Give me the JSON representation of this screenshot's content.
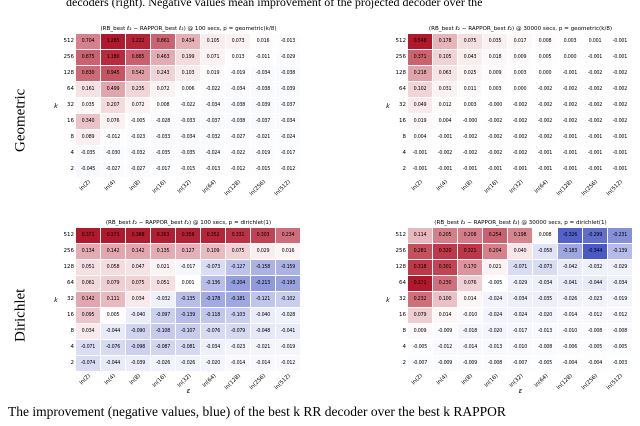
{
  "page": {
    "top_text": "decoders (right). Negative values mean improvement of the projected decoder over the",
    "caption": "The improvement (negative values, blue) of the best k RR decoder over the best k RAPPOR"
  },
  "row_labels": [
    "Geometric",
    "Dirichlet"
  ],
  "colors": {
    "positive_max": "#b2182b",
    "negative_max": "#3b4cc0",
    "mid": "#ffffff"
  },
  "chart_data": [
    {
      "type": "heatmap",
      "title": "(RB_best ℓ₂ − RAPPOR_best ℓ₂) @ 100 secs, p = geometric(k/8)",
      "group": "Geometric",
      "ylabel": "k",
      "xlabel": "",
      "x_axis_name": "ε",
      "rows": [
        "512",
        "256",
        "128",
        "64",
        "32",
        "16",
        "8",
        "4",
        "2"
      ],
      "cols": [
        "ln(2)",
        "ln(4)",
        "ln(8)",
        "ln(16)",
        "ln(32)",
        "ln(64)",
        "ln(128)",
        "ln(256)",
        "ln(512)"
      ],
      "values": [
        [
          "0.704",
          "1.285",
          "1.222",
          "0.861",
          "0.434",
          "0.105",
          "0.073",
          "0.016",
          "-0.013"
        ],
        [
          "0.875",
          "1.180",
          "0.885",
          "0.463",
          "0.199",
          "0.071",
          "0.013",
          "-0.011",
          "-0.029"
        ],
        [
          "0.830",
          "0.945",
          "0.542",
          "0.243",
          "0.103",
          "0.019",
          "-0.019",
          "-0.034",
          "-0.038"
        ],
        [
          "0.161",
          "0.499",
          "0.235",
          "0.072",
          "0.006",
          "-0.022",
          "-0.034",
          "-0.038",
          "-0.039"
        ],
        [
          "0.035",
          "0.207",
          "0.072",
          "0.008",
          "-0.022",
          "-0.034",
          "-0.038",
          "-0.039",
          "-0.037"
        ],
        [
          "0.340",
          "0.076",
          "-0.005",
          "-0.028",
          "-0.033",
          "-0.037",
          "-0.038",
          "-0.037",
          "-0.034"
        ],
        [
          "0.089",
          "-0.012",
          "-0.023",
          "-0.033",
          "-0.034",
          "-0.032",
          "-0.027",
          "-0.021",
          "-0.024"
        ],
        [
          "-0.035",
          "-0.030",
          "-0.032",
          "-0.035",
          "-0.035",
          "-0.024",
          "-0.022",
          "-0.019",
          "-0.017"
        ],
        [
          "-0.045",
          "-0.027",
          "-0.027",
          "-0.017",
          "-0.015",
          "-0.013",
          "-0.012",
          "-0.015",
          "-0.012"
        ]
      ]
    },
    {
      "type": "heatmap",
      "title": "(RB_best ℓ₂ − RAPPOR_best ℓ₂) @ 30000 secs, p = geometric(k/8)",
      "group": "Geometric",
      "ylabel": "k",
      "xlabel": "",
      "x_axis_name": "ε",
      "rows": [
        "512",
        "256",
        "128",
        "64",
        "32",
        "16",
        "8",
        "4",
        "2"
      ],
      "cols": [
        "ln(2)",
        "ln(4)",
        "ln(8)",
        "ln(16)",
        "ln(32)",
        "ln(64)",
        "ln(128)",
        "ln(256)",
        "ln(512)"
      ],
      "values": [
        [
          "0.548",
          "0.178",
          "0.075",
          "0.035",
          "0.017",
          "0.008",
          "0.003",
          "0.001",
          "-0.001"
        ],
        [
          "0.371",
          "0.105",
          "0.043",
          "0.018",
          "0.009",
          "0.005",
          "0.000",
          "-0.001",
          "-0.001"
        ],
        [
          "0.218",
          "0.063",
          "0.025",
          "0.009",
          "0.003",
          "0.000",
          "-0.001",
          "-0.002",
          "-0.002"
        ],
        [
          "0.102",
          "0.031",
          "0.011",
          "0.003",
          "0.000",
          "-0.002",
          "-0.002",
          "-0.002",
          "-0.002"
        ],
        [
          "0.049",
          "0.012",
          "0.003",
          "-0.000",
          "-0.002",
          "-0.002",
          "-0.002",
          "-0.002",
          "-0.002"
        ],
        [
          "0.019",
          "0.004",
          "-0.000",
          "-0.002",
          "-0.002",
          "-0.002",
          "-0.002",
          "-0.002",
          "-0.002"
        ],
        [
          "0.004",
          "-0.001",
          "-0.002",
          "-0.002",
          "-0.002",
          "-0.002",
          "-0.001",
          "-0.001",
          "-0.001"
        ],
        [
          "-0.001",
          "-0.002",
          "-0.002",
          "-0.002",
          "-0.002",
          "-0.001",
          "-0.001",
          "-0.001",
          "-0.001"
        ],
        [
          "-0.001",
          "-0.001",
          "-0.001",
          "-0.001",
          "-0.001",
          "-0.001",
          "-0.001",
          "-0.001",
          "-0.001"
        ]
      ]
    },
    {
      "type": "heatmap",
      "title": "(RB_best ℓ₂ − RAPPOR_best ℓ₂) @ 100 secs, p = dirichlet(1)",
      "group": "Dirichlet",
      "ylabel": "k",
      "xlabel": "ε",
      "x_axis_name": "ε",
      "rows": [
        "512",
        "256",
        "128",
        "64",
        "32",
        "16",
        "8",
        "4",
        "2"
      ],
      "cols": [
        "ln(2)",
        "ln(4)",
        "ln(8)",
        "ln(16)",
        "ln(32)",
        "ln(64)",
        "ln(128)",
        "ln(256)",
        "ln(512)"
      ],
      "values": [
        [
          "0.371",
          "0.373",
          "0.368",
          "0.363",
          "0.358",
          "0.352",
          "0.331",
          "0.303",
          "0.234"
        ],
        [
          "0.134",
          "0.142",
          "0.142",
          "0.135",
          "0.127",
          "0.109",
          "0.075",
          "0.029",
          "0.016"
        ],
        [
          "0.051",
          "0.058",
          "0.047",
          "0.021",
          "-0.017",
          "-0.073",
          "-0.127",
          "-0.158",
          "-0.159"
        ],
        [
          "0.061",
          "0.079",
          "0.075",
          "0.051",
          "0.001",
          "-0.136",
          "-0.204",
          "-0.213",
          "-0.193"
        ],
        [
          "0.142",
          "0.111",
          "0.034",
          "-0.032",
          "-0.135",
          "-0.178",
          "-0.181",
          "-0.121",
          "-0.102"
        ],
        [
          "0.095",
          "0.005",
          "-0.040",
          "-0.097",
          "-0.139",
          "-0.118",
          "-0.103",
          "-0.040",
          "-0.028"
        ],
        [
          "0.034",
          "-0.044",
          "-0.090",
          "-0.108",
          "-0.107",
          "-0.076",
          "-0.079",
          "-0.048",
          "-0.041"
        ],
        [
          "-0.071",
          "-0.076",
          "-0.098",
          "-0.087",
          "-0.081",
          "-0.034",
          "-0.023",
          "-0.021",
          "-0.019"
        ],
        [
          "-0.074",
          "-0.044",
          "-0.039",
          "-0.026",
          "-0.026",
          "-0.020",
          "-0.014",
          "-0.014",
          "-0.012"
        ]
      ]
    },
    {
      "type": "heatmap",
      "title": "(RB_best ℓ₂ − RAPPOR_best ℓ₂) @ 30000 secs, p = dirichlet(1)",
      "group": "Dirichlet",
      "ylabel": "k",
      "xlabel": "ε",
      "x_axis_name": "ε",
      "rows": [
        "512",
        "256",
        "128",
        "64",
        "32",
        "16",
        "8",
        "4",
        "2"
      ],
      "cols": [
        "ln(2)",
        "ln(4)",
        "ln(8)",
        "ln(16)",
        "ln(32)",
        "ln(64)",
        "ln(128)",
        "ln(256)",
        "ln(512)"
      ],
      "values": [
        [
          "0.114",
          "0.205",
          "0.208",
          "0.254",
          "0.198",
          "0.008",
          "-0.326",
          "-0.299",
          "-0.231"
        ],
        [
          "0.281",
          "0.320",
          "0.321",
          "0.204",
          "0.040",
          "-0.058",
          "-0.183",
          "-0.344",
          "-0.139"
        ],
        [
          "0.318",
          "0.301",
          "0.170",
          "0.021",
          "-0.071",
          "-0.073",
          "-0.042",
          "-0.032",
          "-0.029"
        ],
        [
          "0.371",
          "0.230",
          "0.076",
          "-0.005",
          "-0.029",
          "-0.034",
          "-0.041",
          "-0.044",
          "-0.034"
        ],
        [
          "0.232",
          "0.100",
          "0.014",
          "-0.024",
          "-0.034",
          "-0.035",
          "-0.026",
          "-0.023",
          "-0.019"
        ],
        [
          "0.079",
          "0.014",
          "-0.010",
          "-0.024",
          "-0.024",
          "-0.020",
          "-0.014",
          "-0.012",
          "-0.012"
        ],
        [
          "0.009",
          "-0.009",
          "-0.018",
          "-0.020",
          "-0.017",
          "-0.013",
          "-0.010",
          "-0.008",
          "-0.008"
        ],
        [
          "-0.005",
          "-0.012",
          "-0.014",
          "-0.013",
          "-0.010",
          "-0.008",
          "-0.006",
          "-0.005",
          "-0.005"
        ],
        [
          "-0.007",
          "-0.009",
          "-0.009",
          "-0.008",
          "-0.007",
          "-0.005",
          "-0.004",
          "-0.004",
          "-0.003"
        ]
      ]
    }
  ]
}
